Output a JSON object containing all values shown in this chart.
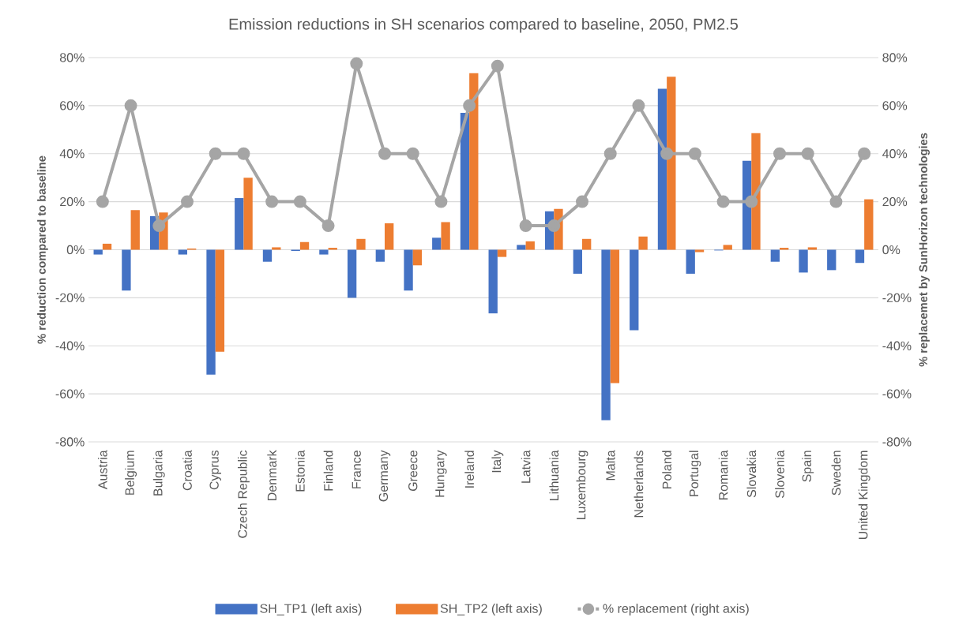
{
  "chart_data": {
    "type": "bar",
    "title": "Emission reductions in SH scenarios compared to baseline, 2050, PM2.5",
    "ylabel": "% reduction compared to baseline",
    "y2label": "% replacemet  by SunHorizon technologies",
    "categories": [
      "Austria",
      "Belgium",
      "Bulgaria",
      "Croatia",
      "Cyprus",
      "Czech Republic",
      "Denmark",
      "Estonia",
      "Finland",
      "France",
      "Germany",
      "Greece",
      "Hungary",
      "Ireland",
      "Italy",
      "Latvia",
      "Lithuania",
      "Luxembourg",
      "Malta",
      "Netherlands",
      "Poland",
      "Portugal",
      "Romania",
      "Slovakia",
      "Slovenia",
      "Spain",
      "Sweden",
      "United Kingdom"
    ],
    "series": [
      {
        "name": "SH_TP1 (left axis)",
        "color": "#4472c4",
        "values": [
          -2,
          -17,
          14,
          -2,
          -52,
          21.5,
          -5,
          -0.5,
          -2,
          -20,
          -5,
          -17,
          5,
          57,
          -26.5,
          2,
          16,
          -10,
          -71,
          -33.5,
          67,
          -10,
          -0.3,
          37,
          -5,
          -9.5,
          -8.5,
          -5.5
        ]
      },
      {
        "name": "SH_TP2 (left axis)",
        "color": "#ed7d31",
        "values": [
          2.5,
          16.5,
          15.5,
          0.5,
          -42.5,
          30,
          1,
          3.2,
          0.8,
          4.5,
          11,
          -6.5,
          11.5,
          73.5,
          -3,
          3.5,
          17,
          4.5,
          -55.5,
          5.5,
          72,
          -1,
          2,
          48.5,
          0.8,
          1,
          null,
          21
        ]
      },
      {
        "name": "% replacement (right axis)",
        "type": "line",
        "axis": "y2",
        "marker": "circle",
        "color": "#a5a5a5",
        "values": [
          20,
          60,
          10,
          20,
          40,
          40,
          20,
          20,
          10,
          77.5,
          40,
          40,
          20,
          60,
          76.5,
          10,
          10,
          20,
          40,
          60,
          40,
          40,
          20,
          20,
          40,
          40,
          20,
          40
        ]
      }
    ],
    "ylim": [
      -80,
      80
    ],
    "yticks": [
      {
        "value": -80,
        "label": "-80%"
      },
      {
        "value": -60,
        "label": "-60%"
      },
      {
        "value": -40,
        "label": "-40%"
      },
      {
        "value": -20,
        "label": "-20%"
      },
      {
        "value": 0,
        "label": "0%"
      },
      {
        "value": 20,
        "label": "20%"
      },
      {
        "value": 40,
        "label": "40%"
      },
      {
        "value": 60,
        "label": "60%"
      },
      {
        "value": 80,
        "label": "80%"
      }
    ],
    "y2lim": [
      -80,
      80
    ],
    "y2ticks": [
      {
        "value": -80,
        "label": "-80%"
      },
      {
        "value": -60,
        "label": "-60%"
      },
      {
        "value": -40,
        "label": "-40%"
      },
      {
        "value": -20,
        "label": "-20%"
      },
      {
        "value": 0,
        "label": "0%"
      },
      {
        "value": 20,
        "label": "20%"
      },
      {
        "value": 40,
        "label": "40%"
      },
      {
        "value": 60,
        "label": "60%"
      },
      {
        "value": 80,
        "label": "80%"
      }
    ],
    "grid": "y",
    "legend": "bottom"
  }
}
